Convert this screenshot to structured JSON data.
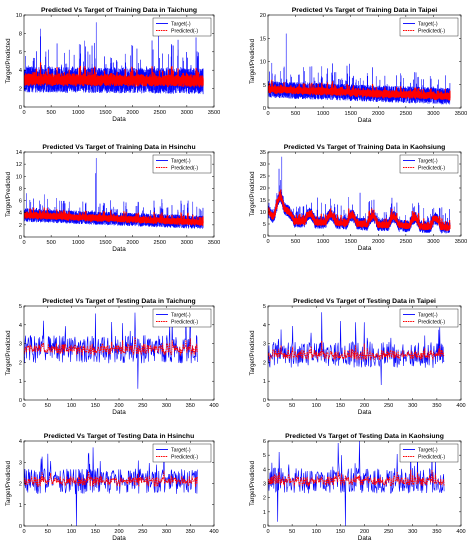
{
  "figure": {
    "background": "#ffffff"
  },
  "series_styles": {
    "target_color": "#0000ff",
    "predicted_color": "#ff0000"
  },
  "chart_data": [
    {
      "type": "line",
      "title": "Predicted Vs Target of Training Data in Taichung",
      "xlabel": "Data",
      "ylabel": "Target/Predicted",
      "xlim": [
        0,
        3500
      ],
      "ylim": [
        0,
        10
      ],
      "xticks": [
        0,
        500,
        1000,
        1500,
        2000,
        2500,
        3000,
        3500
      ],
      "yticks": [
        0,
        2,
        4,
        6,
        8,
        10
      ],
      "n_points": 3300,
      "base": 3.0,
      "trend": -0.2,
      "noise": 1.4,
      "spikes": [
        {
          "x": 1330,
          "y": 9.2
        },
        {
          "x": 300,
          "y": 8.5
        },
        {
          "x": 2480,
          "y": 8.2
        }
      ],
      "pred_scale": 0.35,
      "series": [
        {
          "name": "Target(-)"
        },
        {
          "name": "Predicted(-)"
        }
      ],
      "legend": "top-right",
      "grid": false
    },
    {
      "type": "line",
      "title": "Predicted Vs Target of Training Data in Taipei",
      "xlabel": "Data",
      "ylabel": "Target/Predicted",
      "xlim": [
        0,
        3500
      ],
      "ylim": [
        0,
        20
      ],
      "xticks": [
        0,
        500,
        1000,
        1500,
        2000,
        2500,
        3000,
        3500
      ],
      "yticks": [
        0,
        5,
        10,
        15,
        20
      ],
      "n_points": 3300,
      "base": 4.0,
      "trend": -1.5,
      "noise": 1.8,
      "spikes": [
        {
          "x": 330,
          "y": 16
        },
        {
          "x": 1480,
          "y": 9.5
        },
        {
          "x": 1800,
          "y": 7.5
        }
      ],
      "pred_scale": 0.35,
      "series": [
        {
          "name": "Target(-)"
        },
        {
          "name": "Predicted(-)"
        }
      ],
      "legend": "top-right",
      "grid": false
    },
    {
      "type": "line",
      "title": "Predicted Vs Target of Training Data in Hsinchu",
      "xlabel": "Data",
      "ylabel": "Target/Predicted",
      "xlim": [
        0,
        3500
      ],
      "ylim": [
        0,
        14
      ],
      "xticks": [
        0,
        500,
        1000,
        1500,
        2000,
        2500,
        3000,
        3500
      ],
      "yticks": [
        0,
        2,
        4,
        6,
        8,
        10,
        12,
        14
      ],
      "n_points": 3300,
      "base": 3.6,
      "trend": -1.2,
      "noise": 1.1,
      "spikes": [
        {
          "x": 1330,
          "y": 13
        },
        {
          "x": 1320,
          "y": 10.5
        },
        {
          "x": 50,
          "y": 7.2
        }
      ],
      "pred_scale": 0.4,
      "series": [
        {
          "name": "Target(-)"
        },
        {
          "name": "Predicted(-)"
        }
      ],
      "legend": "top-right",
      "grid": false
    },
    {
      "type": "line",
      "title": "Predicted Vs Target of Training Data in Kaohsiung",
      "xlabel": "Data",
      "ylabel": "Target/Predicted",
      "xlim": [
        0,
        3500
      ],
      "ylim": [
        0,
        35
      ],
      "xticks": [
        0,
        500,
        1000,
        1500,
        2000,
        2500,
        3000,
        3500
      ],
      "yticks": [
        0,
        5,
        10,
        15,
        20,
        25,
        30,
        35
      ],
      "n_points": 3300,
      "base": 6.5,
      "trend": -3.0,
      "noise": 2.6,
      "seasonal": 3.5,
      "period": 380,
      "peak": 10,
      "spikes": [
        {
          "x": 250,
          "y": 33
        },
        {
          "x": 200,
          "y": 28
        },
        {
          "x": 1670,
          "y": 18
        },
        {
          "x": 900,
          "y": 16
        }
      ],
      "pred_scale": 0.45,
      "series": [
        {
          "name": "Target(-)"
        },
        {
          "name": "Predicted(-)"
        }
      ],
      "legend": "top-right",
      "grid": false
    },
    {
      "type": "line",
      "title": "Predicted Vs Target of Testing Data in Taichung",
      "xlabel": "Data",
      "ylabel": "Target/Predicted",
      "xlim": [
        0,
        400
      ],
      "ylim": [
        0,
        5
      ],
      "xticks": [
        0,
        50,
        100,
        150,
        200,
        250,
        300,
        350,
        400
      ],
      "yticks": [
        0,
        1,
        2,
        3,
        4,
        5
      ],
      "n_points": 365,
      "base": 2.7,
      "trend": 0,
      "noise": 0.75,
      "spikes": [
        {
          "x": 240,
          "y": 4.9
        },
        {
          "x": 240,
          "y": 0.6
        },
        {
          "x": 150,
          "y": 4.6
        }
      ],
      "pred_scale": 0.3,
      "series": [
        {
          "name": "Target(-)"
        },
        {
          "name": "Predicted(-)"
        }
      ],
      "legend": "top-right",
      "grid": false
    },
    {
      "type": "line",
      "title": "Predicted Vs Target of Testing Data in Taipei",
      "xlabel": "Data",
      "ylabel": "Target/Predicted",
      "xlim": [
        0,
        400
      ],
      "ylim": [
        0,
        5
      ],
      "xticks": [
        0,
        50,
        100,
        150,
        200,
        250,
        300,
        350,
        400
      ],
      "yticks": [
        0,
        1,
        2,
        3,
        4,
        5
      ],
      "n_points": 365,
      "base": 2.4,
      "trend": 0,
      "noise": 0.7,
      "spikes": [
        {
          "x": 150,
          "y": 4.2
        },
        {
          "x": 235,
          "y": 0.8
        }
      ],
      "pred_scale": 0.3,
      "series": [
        {
          "name": "Target(-)"
        },
        {
          "name": "Predicted(-)"
        }
      ],
      "legend": "top-right",
      "grid": false
    },
    {
      "type": "line",
      "title": "Predicted Vs Target of Testing Data in Hsinchu",
      "xlabel": "Data",
      "ylabel": "Target/Predicted",
      "xlim": [
        0,
        400
      ],
      "ylim": [
        0,
        4
      ],
      "xticks": [
        0,
        50,
        100,
        150,
        200,
        250,
        300,
        350,
        400
      ],
      "yticks": [
        0,
        1,
        2,
        3,
        4
      ],
      "n_points": 365,
      "base": 2.1,
      "trend": 0,
      "noise": 0.6,
      "spikes": [
        {
          "x": 110,
          "y": 0
        },
        {
          "x": 145,
          "y": 3.7
        },
        {
          "x": 50,
          "y": 3.4
        }
      ],
      "pred_scale": 0.3,
      "series": [
        {
          "name": "Target(-)"
        },
        {
          "name": "Predicted(-)"
        }
      ],
      "legend": "top-right",
      "grid": false
    },
    {
      "type": "line",
      "title": "Predicted Vs Target of Testing Data in Kaohsiung",
      "xlabel": "Data",
      "ylabel": "Target/Predicted",
      "xlim": [
        0,
        400
      ],
      "ylim": [
        0,
        6
      ],
      "xticks": [
        0,
        50,
        100,
        150,
        200,
        250,
        300,
        350,
        400
      ],
      "yticks": [
        0,
        1,
        2,
        3,
        4,
        5,
        6
      ],
      "n_points": 365,
      "base": 3.2,
      "trend": 0,
      "noise": 0.9,
      "spikes": [
        {
          "x": 190,
          "y": 6
        },
        {
          "x": 160,
          "y": 0
        },
        {
          "x": 20,
          "y": 0.3
        }
      ],
      "pred_scale": 0.3,
      "series": [
        {
          "name": "Target(-)"
        },
        {
          "name": "Predicted(-)"
        }
      ],
      "legend": "top-right",
      "grid": false
    }
  ]
}
